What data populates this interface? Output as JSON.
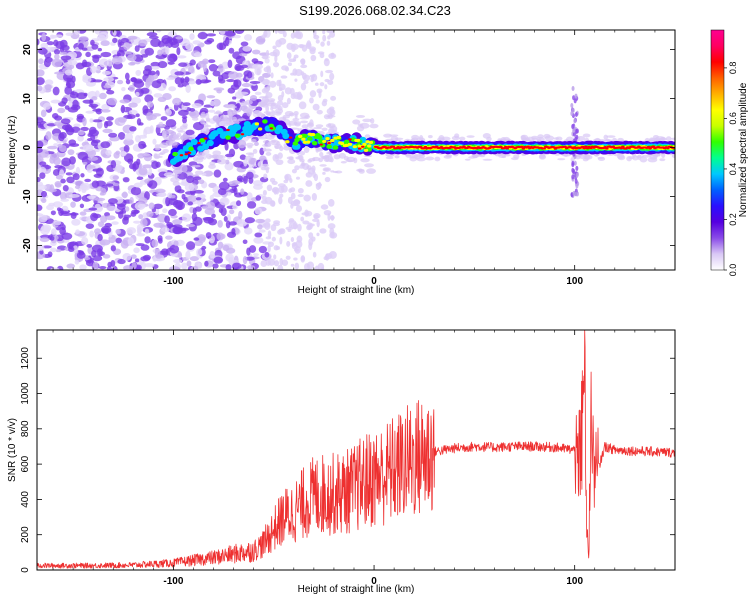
{
  "title": "S199.2026.068.02.34.C23",
  "chart_data": [
    {
      "type": "heatmap",
      "name": "spectrogram",
      "xlabel": "Height of straight line (km)",
      "ylabel": "Frequency (Hz)",
      "xlim": [
        -168,
        150
      ],
      "ylim": [
        -25,
        24
      ],
      "xticks": [
        -100,
        0,
        100
      ],
      "yticks": [
        -20,
        -10,
        0,
        10,
        20
      ],
      "colorbar": {
        "label": "Normalized spectral amplitude",
        "ticks": [
          0.0,
          0.2,
          0.4,
          0.6,
          0.8
        ],
        "range": [
          0,
          0.95
        ],
        "colors": [
          "#ffffff",
          "#d9c8f5",
          "#8a4be8",
          "#5500e0",
          "#2a10ff",
          "#0060ff",
          "#00c8ff",
          "#00ff90",
          "#30ff00",
          "#c8ff00",
          "#ffff00",
          "#ffb000",
          "#ff6000",
          "#ff0000",
          "#ff0060",
          "#ff0090"
        ]
      },
      "ridge": {
        "x": [
          -100,
          -90,
          -80,
          -70,
          -60,
          -50,
          -40,
          -30,
          -20,
          -10,
          0,
          10,
          20,
          40,
          60,
          80,
          90,
          100,
          110,
          130,
          150
        ],
        "y": [
          -2,
          0,
          2,
          3,
          4,
          5,
          1,
          2,
          1,
          1,
          0,
          0,
          0,
          0,
          0,
          0,
          0,
          0,
          0,
          0,
          0
        ]
      }
    },
    {
      "type": "line",
      "name": "snr",
      "xlabel": "Height of straight line (km)",
      "ylabel": "SNR (10 * v/v)",
      "xlim": [
        -168,
        150
      ],
      "ylim": [
        0,
        1360
      ],
      "xticks": [
        -100,
        0,
        100
      ],
      "yticks": [
        0,
        200,
        400,
        600,
        800,
        1000,
        1200
      ],
      "color": "#ee3030",
      "series": [
        {
          "name": "SNR envelope",
          "x": [
            -168,
            -140,
            -120,
            -100,
            -90,
            -80,
            -70,
            -60,
            -55,
            -50,
            -45,
            -40,
            -35,
            -30,
            -25,
            -20,
            -15,
            -10,
            -5,
            0,
            5,
            10,
            15,
            20,
            25,
            30,
            40,
            50,
            60,
            70,
            80,
            90,
            100,
            103,
            104,
            105,
            106,
            107,
            108,
            109,
            110,
            115,
            120,
            130,
            140,
            150
          ],
          "y": [
            25,
            25,
            28,
            40,
            55,
            70,
            90,
            110,
            150,
            230,
            300,
            330,
            380,
            420,
            430,
            430,
            440,
            460,
            500,
            520,
            540,
            570,
            600,
            630,
            650,
            670,
            690,
            700,
            695,
            700,
            700,
            695,
            680,
            650,
            900,
            1300,
            300,
            80,
            700,
            1100,
            500,
            700,
            680,
            675,
            670,
            665
          ]
        }
      ]
    }
  ]
}
